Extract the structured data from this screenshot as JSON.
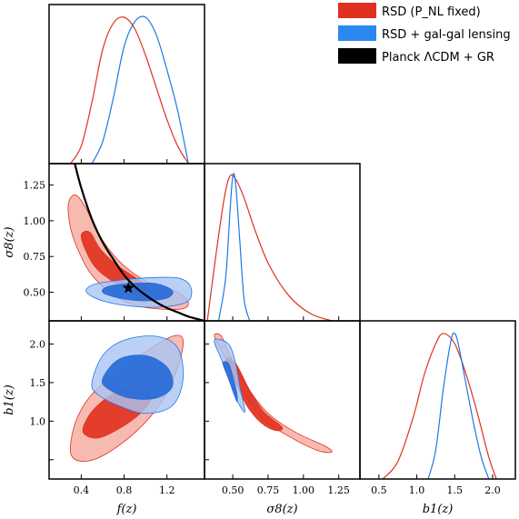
{
  "chart_data": {
    "type": "corner",
    "parameters": [
      {
        "id": "f",
        "label": "f(z)",
        "ticks": [
          "0.4",
          "0.8",
          "1.2"
        ],
        "tick_values": [
          0.4,
          0.8,
          1.2
        ],
        "range": [
          0.1,
          1.55
        ]
      },
      {
        "id": "s8",
        "label": "σ8(z)",
        "ticks": [
          "0.50",
          "0.75",
          "1.00",
          "1.25"
        ],
        "tick_values": [
          0.5,
          0.75,
          1.0,
          1.25
        ],
        "range": [
          0.3,
          1.4
        ]
      },
      {
        "id": "b1",
        "label": "b1(z)",
        "ticks": [
          "0.5",
          "1.0",
          "1.5",
          "2.0"
        ],
        "tick_values": [
          0.5,
          1.0,
          1.5,
          2.0
        ],
        "range": [
          0.25,
          2.3
        ]
      }
    ],
    "y_ticks": {
      "s8": [
        "0.50",
        "0.75",
        "1.00",
        "1.25"
      ],
      "b1": [
        "1.0",
        "1.5",
        "2.0"
      ]
    },
    "series": [
      {
        "name": "RSD (P_NL fixed)",
        "color": "#e0301e"
      },
      {
        "name": "RSD + gal-gal lensing",
        "color": "#1f77e8"
      },
      {
        "name": "Planck ΛCDM + GR",
        "color": "#000000"
      }
    ],
    "marginals": {
      "f": {
        "rsd": {
          "x": [
            0.3,
            0.4,
            0.5,
            0.6,
            0.7,
            0.8,
            0.9,
            1.0,
            1.1,
            1.2,
            1.3,
            1.4
          ],
          "y": [
            0.0,
            0.12,
            0.42,
            0.78,
            0.96,
            1.0,
            0.92,
            0.74,
            0.52,
            0.3,
            0.12,
            0.0
          ]
        },
        "lensing": {
          "x": [
            0.5,
            0.6,
            0.7,
            0.8,
            0.9,
            1.0,
            1.1,
            1.2,
            1.3,
            1.4
          ],
          "y": [
            0.0,
            0.15,
            0.45,
            0.8,
            0.97,
            1.0,
            0.88,
            0.64,
            0.36,
            0.0
          ]
        }
      },
      "s8": {
        "rsd": {
          "x": [
            0.32,
            0.38,
            0.44,
            0.48,
            0.52,
            0.58,
            0.66,
            0.76,
            0.9,
            1.05,
            1.2
          ],
          "y": [
            0.0,
            0.45,
            0.85,
            1.0,
            0.98,
            0.85,
            0.62,
            0.38,
            0.17,
            0.05,
            0.0
          ]
        },
        "lensing": {
          "x": [
            0.4,
            0.45,
            0.48,
            0.5,
            0.52,
            0.55,
            0.58,
            0.62
          ],
          "y": [
            0.0,
            0.3,
            0.75,
            1.0,
            0.95,
            0.55,
            0.15,
            0.0
          ]
        }
      },
      "b1": {
        "rsd": {
          "x": [
            0.55,
            0.75,
            0.95,
            1.1,
            1.25,
            1.35,
            1.5,
            1.65,
            1.8,
            1.95,
            2.05
          ],
          "y": [
            0.0,
            0.12,
            0.42,
            0.72,
            0.93,
            1.0,
            0.93,
            0.72,
            0.45,
            0.15,
            0.0
          ]
        },
        "lensing": {
          "x": [
            1.15,
            1.25,
            1.35,
            1.45,
            1.5,
            1.55,
            1.65,
            1.75,
            1.85,
            1.95
          ],
          "y": [
            0.0,
            0.2,
            0.62,
            0.95,
            1.0,
            0.92,
            0.65,
            0.38,
            0.15,
            0.0
          ]
        }
      }
    },
    "contours_2d": {
      "f_s8": {
        "rsd_95": [
          [
            0.28,
            1.12
          ],
          [
            0.3,
            0.95
          ],
          [
            0.38,
            0.78
          ],
          [
            0.5,
            0.62
          ],
          [
            0.7,
            0.48
          ],
          [
            0.95,
            0.4
          ],
          [
            1.3,
            0.38
          ],
          [
            1.4,
            0.42
          ],
          [
            1.3,
            0.5
          ],
          [
            1.0,
            0.58
          ],
          [
            0.75,
            0.72
          ],
          [
            0.55,
            0.92
          ],
          [
            0.45,
            1.08
          ],
          [
            0.35,
            1.18
          ]
        ],
        "rsd_68": [
          [
            0.4,
            0.9
          ],
          [
            0.45,
            0.78
          ],
          [
            0.55,
            0.66
          ],
          [
            0.75,
            0.55
          ],
          [
            0.95,
            0.48
          ],
          [
            1.05,
            0.5
          ],
          [
            0.95,
            0.58
          ],
          [
            0.75,
            0.68
          ],
          [
            0.58,
            0.8
          ],
          [
            0.48,
            0.92
          ]
        ],
        "lensing_95": [
          [
            0.45,
            0.5
          ],
          [
            0.6,
            0.44
          ],
          [
            0.9,
            0.4
          ],
          [
            1.2,
            0.4
          ],
          [
            1.4,
            0.44
          ],
          [
            1.42,
            0.54
          ],
          [
            1.3,
            0.6
          ],
          [
            1.0,
            0.6
          ],
          [
            0.7,
            0.58
          ],
          [
            0.5,
            0.55
          ]
        ],
        "lensing_68": [
          [
            0.6,
            0.5
          ],
          [
            0.75,
            0.46
          ],
          [
            1.0,
            0.44
          ],
          [
            1.2,
            0.46
          ],
          [
            1.25,
            0.51
          ],
          [
            1.1,
            0.56
          ],
          [
            0.85,
            0.56
          ],
          [
            0.65,
            0.54
          ]
        ],
        "planck_curve": {
          "x": [
            0.34,
            0.4,
            0.5,
            0.6,
            0.7,
            0.8,
            0.9,
            1.0,
            1.1,
            1.2,
            1.3,
            1.4,
            1.5,
            1.55
          ],
          "y": [
            1.4,
            1.23,
            1.01,
            0.85,
            0.73,
            0.62,
            0.54,
            0.48,
            0.43,
            0.39,
            0.36,
            0.33,
            0.31,
            0.3
          ]
        },
        "planck_point": {
          "x": 0.84,
          "y": 0.53
        }
      },
      "f_b1": {
        "rsd_95": [
          [
            0.3,
            0.6
          ],
          [
            0.4,
            0.48
          ],
          [
            0.6,
            0.55
          ],
          [
            0.9,
            0.85
          ],
          [
            1.15,
            1.25
          ],
          [
            1.3,
            1.7
          ],
          [
            1.35,
            2.05
          ],
          [
            1.25,
            2.1
          ],
          [
            1.0,
            1.9
          ],
          [
            0.75,
            1.65
          ],
          [
            0.5,
            1.35
          ],
          [
            0.35,
            1.0
          ]
        ],
        "rsd_68": [
          [
            0.42,
            0.85
          ],
          [
            0.55,
            0.78
          ],
          [
            0.75,
            0.9
          ],
          [
            0.95,
            1.1
          ],
          [
            1.05,
            1.3
          ],
          [
            0.95,
            1.45
          ],
          [
            0.75,
            1.4
          ],
          [
            0.55,
            1.2
          ],
          [
            0.45,
            1.02
          ]
        ],
        "lensing_95": [
          [
            0.5,
            1.5
          ],
          [
            0.6,
            1.85
          ],
          [
            0.8,
            2.05
          ],
          [
            1.1,
            2.1
          ],
          [
            1.3,
            1.95
          ],
          [
            1.35,
            1.55
          ],
          [
            1.25,
            1.2
          ],
          [
            1.0,
            1.1
          ],
          [
            0.75,
            1.2
          ],
          [
            0.55,
            1.35
          ]
        ],
        "lensing_68": [
          [
            0.6,
            1.55
          ],
          [
            0.75,
            1.8
          ],
          [
            1.0,
            1.85
          ],
          [
            1.2,
            1.7
          ],
          [
            1.25,
            1.45
          ],
          [
            1.1,
            1.3
          ],
          [
            0.85,
            1.3
          ],
          [
            0.65,
            1.42
          ]
        ]
      },
      "s8_b1": {
        "rsd_95": [
          [
            0.37,
            2.1
          ],
          [
            0.45,
            1.8
          ],
          [
            0.55,
            1.45
          ],
          [
            0.7,
            1.05
          ],
          [
            0.9,
            0.8
          ],
          [
            1.1,
            0.62
          ],
          [
            1.2,
            0.6
          ],
          [
            1.15,
            0.68
          ],
          [
            0.95,
            0.85
          ],
          [
            0.75,
            1.1
          ],
          [
            0.6,
            1.45
          ],
          [
            0.48,
            1.85
          ],
          [
            0.42,
            2.1
          ]
        ],
        "rsd_68": [
          [
            0.45,
            1.8
          ],
          [
            0.52,
            1.5
          ],
          [
            0.6,
            1.2
          ],
          [
            0.7,
            0.98
          ],
          [
            0.8,
            0.88
          ],
          [
            0.85,
            0.92
          ],
          [
            0.72,
            1.12
          ],
          [
            0.62,
            1.4
          ],
          [
            0.52,
            1.75
          ]
        ],
        "lensing_95": [
          [
            0.37,
            2.05
          ],
          [
            0.42,
            1.8
          ],
          [
            0.48,
            1.5
          ],
          [
            0.52,
            1.3
          ],
          [
            0.58,
            1.12
          ],
          [
            0.58,
            1.2
          ],
          [
            0.55,
            1.45
          ],
          [
            0.52,
            1.75
          ],
          [
            0.47,
            2.0
          ]
        ],
        "lensing_68": [
          [
            0.43,
            1.75
          ],
          [
            0.47,
            1.55
          ],
          [
            0.51,
            1.35
          ],
          [
            0.53,
            1.25
          ],
          [
            0.53,
            1.35
          ],
          [
            0.5,
            1.58
          ],
          [
            0.47,
            1.75
          ]
        ]
      }
    },
    "colors": {
      "rsd_line": "#e0301e",
      "rsd_68": "#e0301e",
      "rsd_95": "#f6b2a8",
      "lensing_line": "#1f77e8",
      "lensing_68": "#2569d6",
      "lensing_95": "#a9c6f2",
      "planck": "#000000"
    }
  }
}
